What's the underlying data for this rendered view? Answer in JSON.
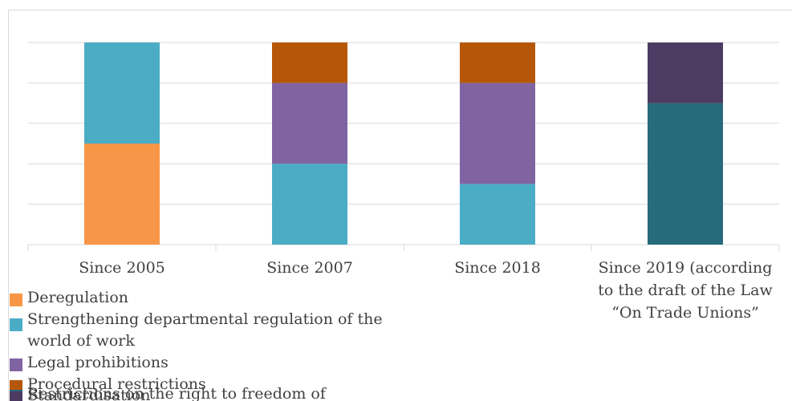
{
  "chart_data": {
    "type": "bar",
    "stacked": true,
    "categories": [
      "Since 2005",
      "Since 2007",
      "Since 2018",
      "Since 2019 (according to the draft of the Law “On Trade Unions”"
    ],
    "ylim": [
      0,
      5
    ],
    "grid": true,
    "legend_position": "bottom-left",
    "series": [
      {
        "name": "Deregulation",
        "color": "#f79646",
        "values": [
          2.5,
          0,
          0,
          0
        ]
      },
      {
        "name": "Strengthening departmental regulation of the world of work",
        "color": "#4bacc6",
        "values": [
          2.5,
          2,
          1.5,
          0
        ]
      },
      {
        "name": "Legal prohibitions",
        "color": "#8064a2",
        "values": [
          0,
          2,
          2.5,
          0
        ]
      },
      {
        "name": "Procedural restrictions",
        "color": "#b65708",
        "values": [
          0,
          1,
          1,
          0
        ]
      },
      {
        "name": "Restrictions on the right to freedom of",
        "color": "#276a7c",
        "values": [
          0,
          0,
          0,
          3.5
        ]
      },
      {
        "name": "Standardisation",
        "color": "#4c3b62",
        "values": [
          0,
          0,
          0,
          1.5
        ]
      }
    ]
  }
}
